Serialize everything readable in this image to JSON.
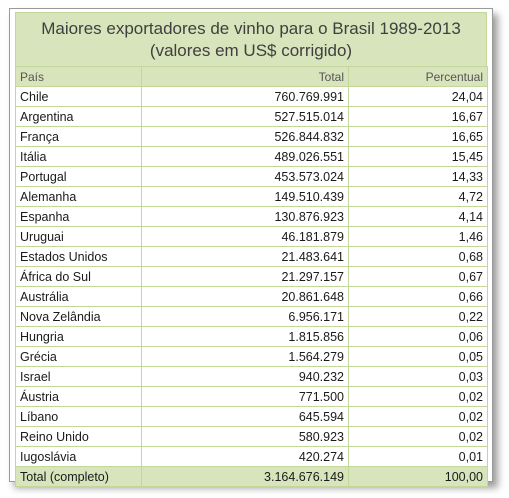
{
  "title_line1": "Maiores exportadores de vinho para o Brasil 1989-2013",
  "title_line2": "(valores em US$ corrigido)",
  "headers": {
    "country": "País",
    "total": "Total",
    "percent": "Percentual"
  },
  "rows": [
    {
      "country": "Chile",
      "total": "760.769.991",
      "percent": "24,04"
    },
    {
      "country": "Argentina",
      "total": "527.515.014",
      "percent": "16,67"
    },
    {
      "country": "França",
      "total": "526.844.832",
      "percent": "16,65"
    },
    {
      "country": "Itália",
      "total": "489.026.551",
      "percent": "15,45"
    },
    {
      "country": "Portugal",
      "total": "453.573.024",
      "percent": "14,33"
    },
    {
      "country": "Alemanha",
      "total": "149.510.439",
      "percent": "4,72"
    },
    {
      "country": "Espanha",
      "total": "130.876.923",
      "percent": "4,14"
    },
    {
      "country": "Uruguai",
      "total": "46.181.879",
      "percent": "1,46"
    },
    {
      "country": "Estados Unidos",
      "total": "21.483.641",
      "percent": "0,68"
    },
    {
      "country": "África do Sul",
      "total": "21.297.157",
      "percent": "0,67"
    },
    {
      "country": "Austrália",
      "total": "20.861.648",
      "percent": "0,66"
    },
    {
      "country": "Nova Zelândia",
      "total": "6.956.171",
      "percent": "0,22"
    },
    {
      "country": "Hungria",
      "total": "1.815.856",
      "percent": "0,06"
    },
    {
      "country": "Grécia",
      "total": "1.564.279",
      "percent": "0,05"
    },
    {
      "country": "Israel",
      "total": "940.232",
      "percent": "0,03"
    },
    {
      "country": "Áustria",
      "total": "771.500",
      "percent": "0,02"
    },
    {
      "country": "Líbano",
      "total": "645.594",
      "percent": "0,02"
    },
    {
      "country": "Reino Unido",
      "total": "580.923",
      "percent": "0,02"
    },
    {
      "country": "Iugoslávia",
      "total": "420.274",
      "percent": "0,01"
    }
  ],
  "total": {
    "label": "Total (completo)",
    "total": "3.164.676.149",
    "percent": "100,00"
  }
}
